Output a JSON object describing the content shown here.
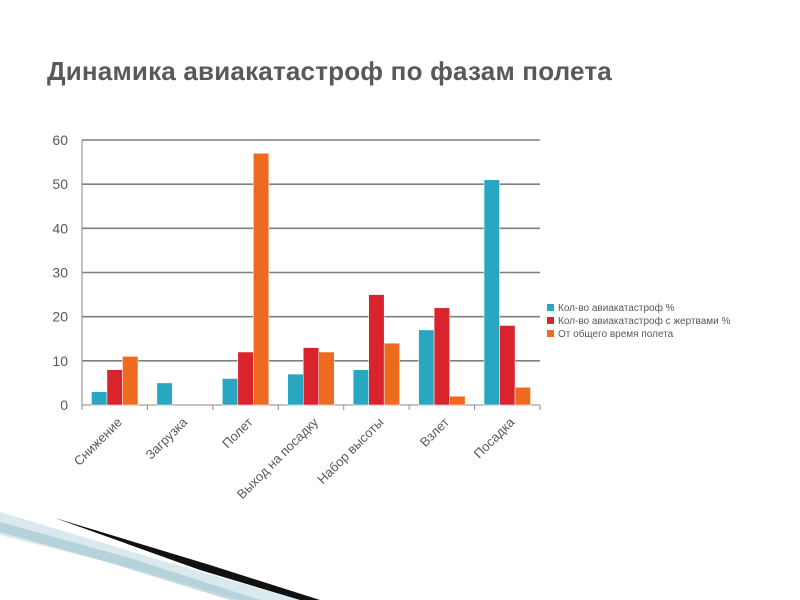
{
  "slide": {
    "title": "Динамика авиакатастроф по фазам полета"
  },
  "chart_data": {
    "type": "bar",
    "title": "",
    "xlabel": "",
    "ylabel": "",
    "ylim": [
      0,
      60
    ],
    "yticks": [
      0,
      10,
      20,
      30,
      40,
      50,
      60
    ],
    "grid": true,
    "legend_position": "right",
    "categories": [
      "Снижение",
      "Загрузка",
      "Полет",
      "Выход на посадку",
      "Набор высоты",
      "Взлет",
      "Посадка"
    ],
    "series": [
      {
        "name": "Кол-во авиакатастроф %",
        "color": "#2aa7c0",
        "values": [
          3,
          5,
          6,
          7,
          8,
          17,
          51
        ]
      },
      {
        "name": "Кол-во авиакатастроф с жертвами %",
        "color": "#d9232d",
        "values": [
          8,
          null,
          12,
          13,
          25,
          22,
          18
        ]
      },
      {
        "name": "От общего время полета",
        "color": "#ee6a1f",
        "values": [
          11,
          null,
          57,
          12,
          14,
          2,
          4
        ]
      }
    ]
  }
}
